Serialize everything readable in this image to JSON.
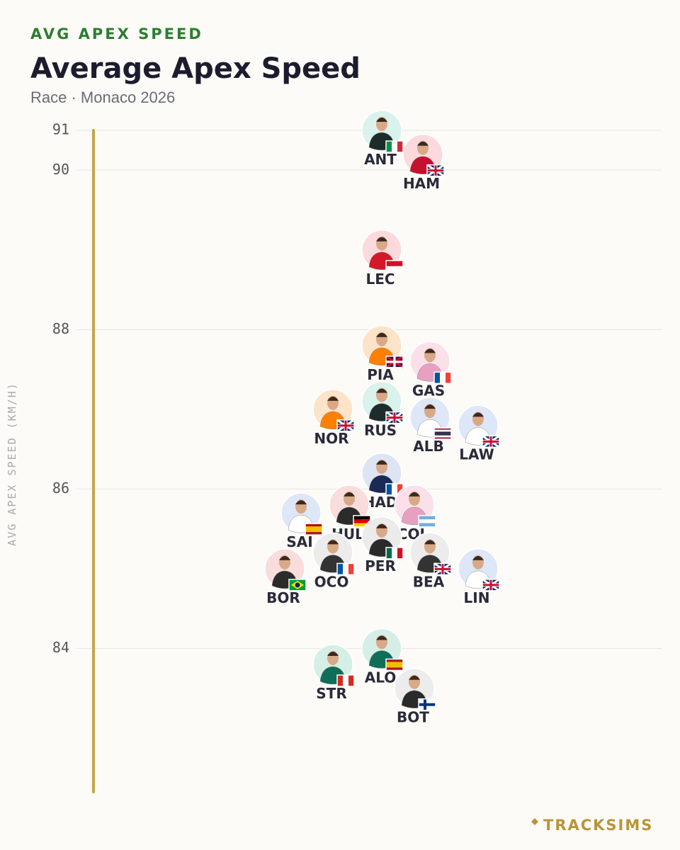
{
  "chart_data": {
    "type": "beeswarm",
    "kicker": "AVG APEX SPEED",
    "title": "Average Apex Speed",
    "subtitle": "Race · Monaco 2026",
    "y_label": "AVG APEX SPEED (KM/H)",
    "brand": "TRACKSIMS",
    "categories": [
      "ANT",
      "HAM",
      "LEC",
      "PIA",
      "GAS",
      "NOR",
      "RUS",
      "ALB",
      "LAW",
      "HAD",
      "HUL",
      "SAI",
      "COL",
      "PER",
      "OCO",
      "BEA",
      "BOR",
      "LIN",
      "ALO",
      "STR",
      "BOT"
    ],
    "values": [
      90.5,
      90.2,
      89.0,
      87.8,
      87.6,
      87.0,
      87.1,
      86.9,
      86.8,
      86.2,
      85.8,
      85.7,
      85.8,
      85.4,
      85.2,
      85.2,
      85.0,
      85.0,
      84.0,
      83.8,
      83.5
    ],
    "colors": [
      "#d9f2ec",
      "#fbd9dc",
      "#fbd9dc",
      "#fde3c8",
      "#fbe0ea",
      "#fde3c8",
      "#d9f2ec",
      "#dde7f7",
      "#dde7f7",
      "#dde4f3",
      "#f9dcdc",
      "#dde7f7",
      "#fbe0ea",
      "#ebebeb",
      "#ececec",
      "#ececec",
      "#f9dcdc",
      "#dde7f7",
      "#d5efe6",
      "#d5efe6",
      "#ececec"
    ],
    "axis_color": "#c3a64a",
    "ylim": [
      82.2,
      90.5
    ],
    "yticks": [
      84,
      86,
      88,
      90,
      {
        "value": 90.5,
        "label": "91"
      }
    ],
    "grid": true
  }
}
